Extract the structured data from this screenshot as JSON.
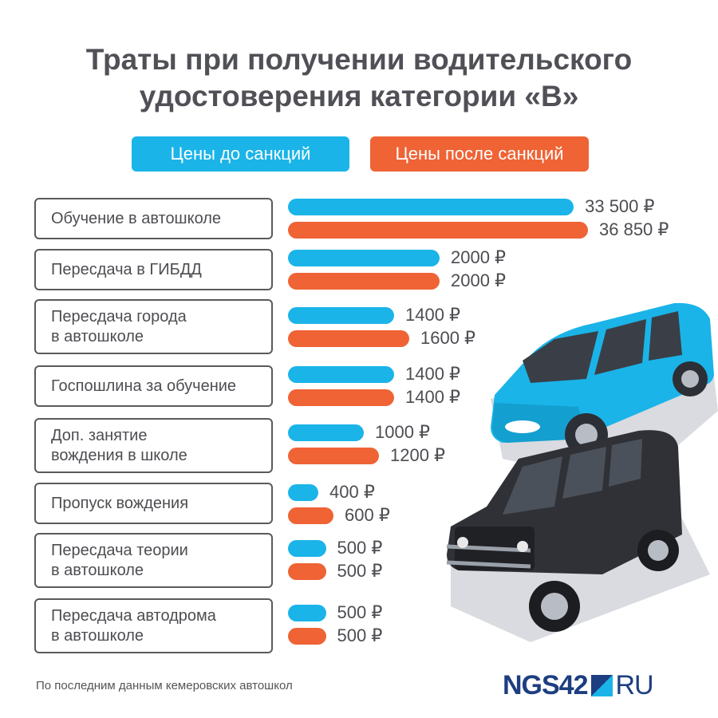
{
  "title_lines": [
    "Траты при получении водительского",
    "удостоверения категории «В»"
  ],
  "legend": {
    "before": "Цены до санкций",
    "after": "Цены после санкций"
  },
  "colors": {
    "before": "#1ab4e8",
    "after": "#ef6335"
  },
  "chart_data": {
    "type": "bar",
    "orientation": "horizontal",
    "title": "Траты при получении водительского удостоверения категории «В»",
    "categories": [
      "Обучение в автошколе",
      "Пересдача в ГИБДД",
      "Пересдача города\nв автошколе",
      "Госпошлина за обучение",
      "Доп. занятие\nвождения в школе",
      "Пропуск вождения",
      "Пересдача теории\nв автошколе",
      "Пересдача автодрома\nв автошколе"
    ],
    "series": [
      {
        "name": "Цены до санкций",
        "values": [
          33500,
          2000,
          1400,
          1400,
          1000,
          400,
          500,
          500
        ],
        "labels": [
          "33 500 ₽",
          "2000 ₽",
          "1400 ₽",
          "1400 ₽",
          "1000 ₽",
          "400 ₽",
          "500 ₽",
          "500 ₽"
        ]
      },
      {
        "name": "Цены после санкций",
        "values": [
          36850,
          2000,
          1600,
          1400,
          1200,
          600,
          500,
          500
        ],
        "labels": [
          "36 850 ₽",
          "2000 ₽",
          "1600 ₽",
          "1400 ₽",
          "1200 ₽",
          "600 ₽",
          "500 ₽",
          "500 ₽"
        ]
      }
    ],
    "legend_position": "top-center",
    "grid": false
  },
  "footnote": "По последним данным кемеровских автошкол",
  "logo": {
    "text": "NGS42",
    "suffix": "RU"
  },
  "illustration": [
    "blue-car-icon",
    "black-suv-icon"
  ]
}
